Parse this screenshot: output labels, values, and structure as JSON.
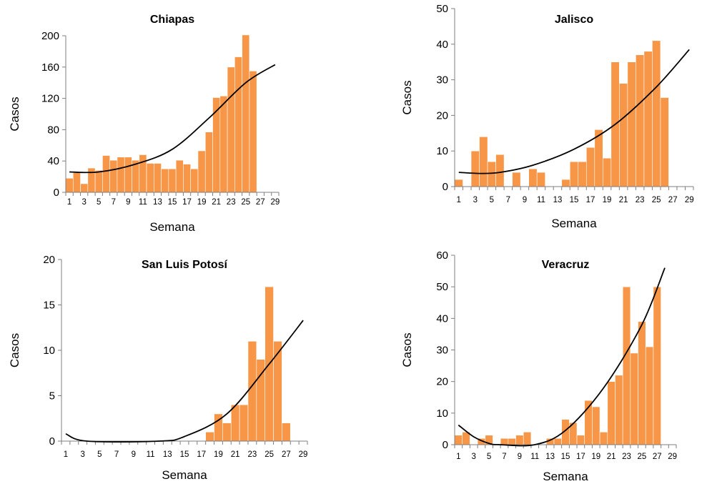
{
  "chart_data": [
    {
      "type": "bar",
      "title": "Chiapas",
      "xlabel": "Semana",
      "ylabel": "Casos",
      "ylim": [
        0,
        200
      ],
      "yticks": [
        "0",
        "40",
        "80",
        "120",
        "160",
        "200"
      ],
      "x_tick_labels": [
        "1",
        "3",
        "5",
        "7",
        "9",
        "11",
        "13",
        "15",
        "17",
        "19",
        "21",
        "23",
        "25",
        "27",
        "29"
      ],
      "weeks": [
        1,
        2,
        3,
        4,
        5,
        6,
        7,
        8,
        9,
        10,
        11,
        12,
        13,
        14,
        15,
        16,
        17,
        18,
        19,
        20,
        21,
        22,
        23,
        24,
        25,
        26
      ],
      "values": [
        18,
        25,
        11,
        31,
        28,
        47,
        41,
        45,
        45,
        41,
        48,
        37,
        37,
        30,
        30,
        41,
        36,
        30,
        53,
        77,
        121,
        123,
        160,
        173,
        201,
        155
      ],
      "trendline": {
        "type": "polynomial",
        "order": 2,
        "points": [
          [
            1,
            26
          ],
          [
            5,
            26
          ],
          [
            10,
            36
          ],
          [
            15,
            55
          ],
          [
            20,
            95
          ],
          [
            25,
            140
          ],
          [
            29,
            163
          ]
        ]
      },
      "grid": false,
      "legend": "none"
    },
    {
      "type": "bar",
      "title": "Jalisco",
      "xlabel": "Semana",
      "ylabel": "Casos",
      "ylim": [
        0,
        50
      ],
      "yticks": [
        "0",
        "10",
        "20",
        "30",
        "40",
        "50"
      ],
      "x_tick_labels": [
        "1",
        "3",
        "5",
        "7",
        "9",
        "11",
        "13",
        "15",
        "17",
        "19",
        "21",
        "23",
        "25",
        "27",
        "29"
      ],
      "weeks": [
        1,
        2,
        3,
        4,
        5,
        6,
        7,
        8,
        9,
        10,
        11,
        12,
        13,
        14,
        15,
        16,
        17,
        18,
        19,
        20,
        21,
        22,
        23,
        24,
        25,
        26
      ],
      "values": [
        2,
        0,
        10,
        14,
        7,
        9,
        0,
        4,
        0,
        5,
        4,
        0,
        0,
        2,
        7,
        7,
        11,
        16,
        8,
        35,
        29,
        35,
        37,
        38,
        41,
        25
      ],
      "trendline": {
        "type": "polynomial",
        "order": 2,
        "points": [
          [
            1,
            4.0
          ],
          [
            3.5,
            3.7
          ],
          [
            6,
            4.0
          ],
          [
            10,
            6.0
          ],
          [
            15,
            10.5
          ],
          [
            20,
            17.5
          ],
          [
            25,
            28
          ],
          [
            29,
            38.5
          ]
        ]
      },
      "grid": false,
      "legend": "none"
    },
    {
      "type": "bar",
      "title": "San Luis Potosí",
      "xlabel": "Semana",
      "ylabel": "Casos",
      "ylim": [
        0,
        20
      ],
      "yticks": [
        "0",
        "5",
        "10",
        "15",
        "20"
      ],
      "x_tick_labels": [
        "1",
        "3",
        "5",
        "7",
        "9",
        "11",
        "13",
        "15",
        "17",
        "19",
        "21",
        "23",
        "25",
        "27",
        "29"
      ],
      "weeks": [
        1,
        2,
        3,
        4,
        5,
        6,
        7,
        8,
        9,
        10,
        11,
        12,
        13,
        14,
        15,
        16,
        17,
        18,
        19,
        20,
        21,
        22,
        23,
        24,
        25,
        26,
        27
      ],
      "values": [
        0,
        0,
        0,
        0,
        0,
        0,
        0,
        0,
        0,
        0,
        0,
        0,
        0,
        0,
        0,
        0,
        0,
        1,
        3,
        2,
        4,
        4,
        11,
        9,
        17,
        11,
        2
      ],
      "trendline": {
        "type": "polynomial",
        "order": 2,
        "points": [
          [
            1,
            0.8
          ],
          [
            3.5,
            0
          ],
          [
            12,
            0
          ],
          [
            15,
            0.5
          ],
          [
            20,
            3
          ],
          [
            25,
            8.5
          ],
          [
            29,
            13.3
          ]
        ]
      },
      "grid": false,
      "legend": "none"
    },
    {
      "type": "bar",
      "title": "Veracruz",
      "xlabel": "Semana",
      "ylabel": "Casos",
      "ylim": [
        0,
        60
      ],
      "yticks": [
        "0",
        "10",
        "20",
        "30",
        "40",
        "50",
        "60"
      ],
      "x_tick_labels": [
        "1",
        "3",
        "5",
        "7",
        "9",
        "11",
        "13",
        "15",
        "17",
        "19",
        "21",
        "23",
        "25",
        "27",
        "29"
      ],
      "weeks": [
        1,
        2,
        3,
        4,
        5,
        6,
        7,
        8,
        9,
        10,
        11,
        12,
        13,
        14,
        15,
        16,
        17,
        18,
        19,
        20,
        21,
        22,
        23,
        24,
        25,
        26,
        27
      ],
      "values": [
        3,
        4,
        0,
        2,
        3,
        0,
        2,
        2,
        3,
        4,
        0,
        0,
        2,
        2,
        8,
        7,
        3,
        14,
        12,
        4,
        20,
        22,
        50,
        29,
        39,
        31,
        50
      ],
      "trendline": {
        "type": "polynomial",
        "order": 2,
        "points": [
          [
            1,
            6.2
          ],
          [
            3,
            2.5
          ],
          [
            5,
            0.4
          ],
          [
            6.5,
            0
          ],
          [
            11,
            0
          ],
          [
            15,
            4.5
          ],
          [
            20,
            18
          ],
          [
            25,
            38
          ],
          [
            28,
            56
          ]
        ]
      },
      "grid": false,
      "legend": "none"
    }
  ]
}
